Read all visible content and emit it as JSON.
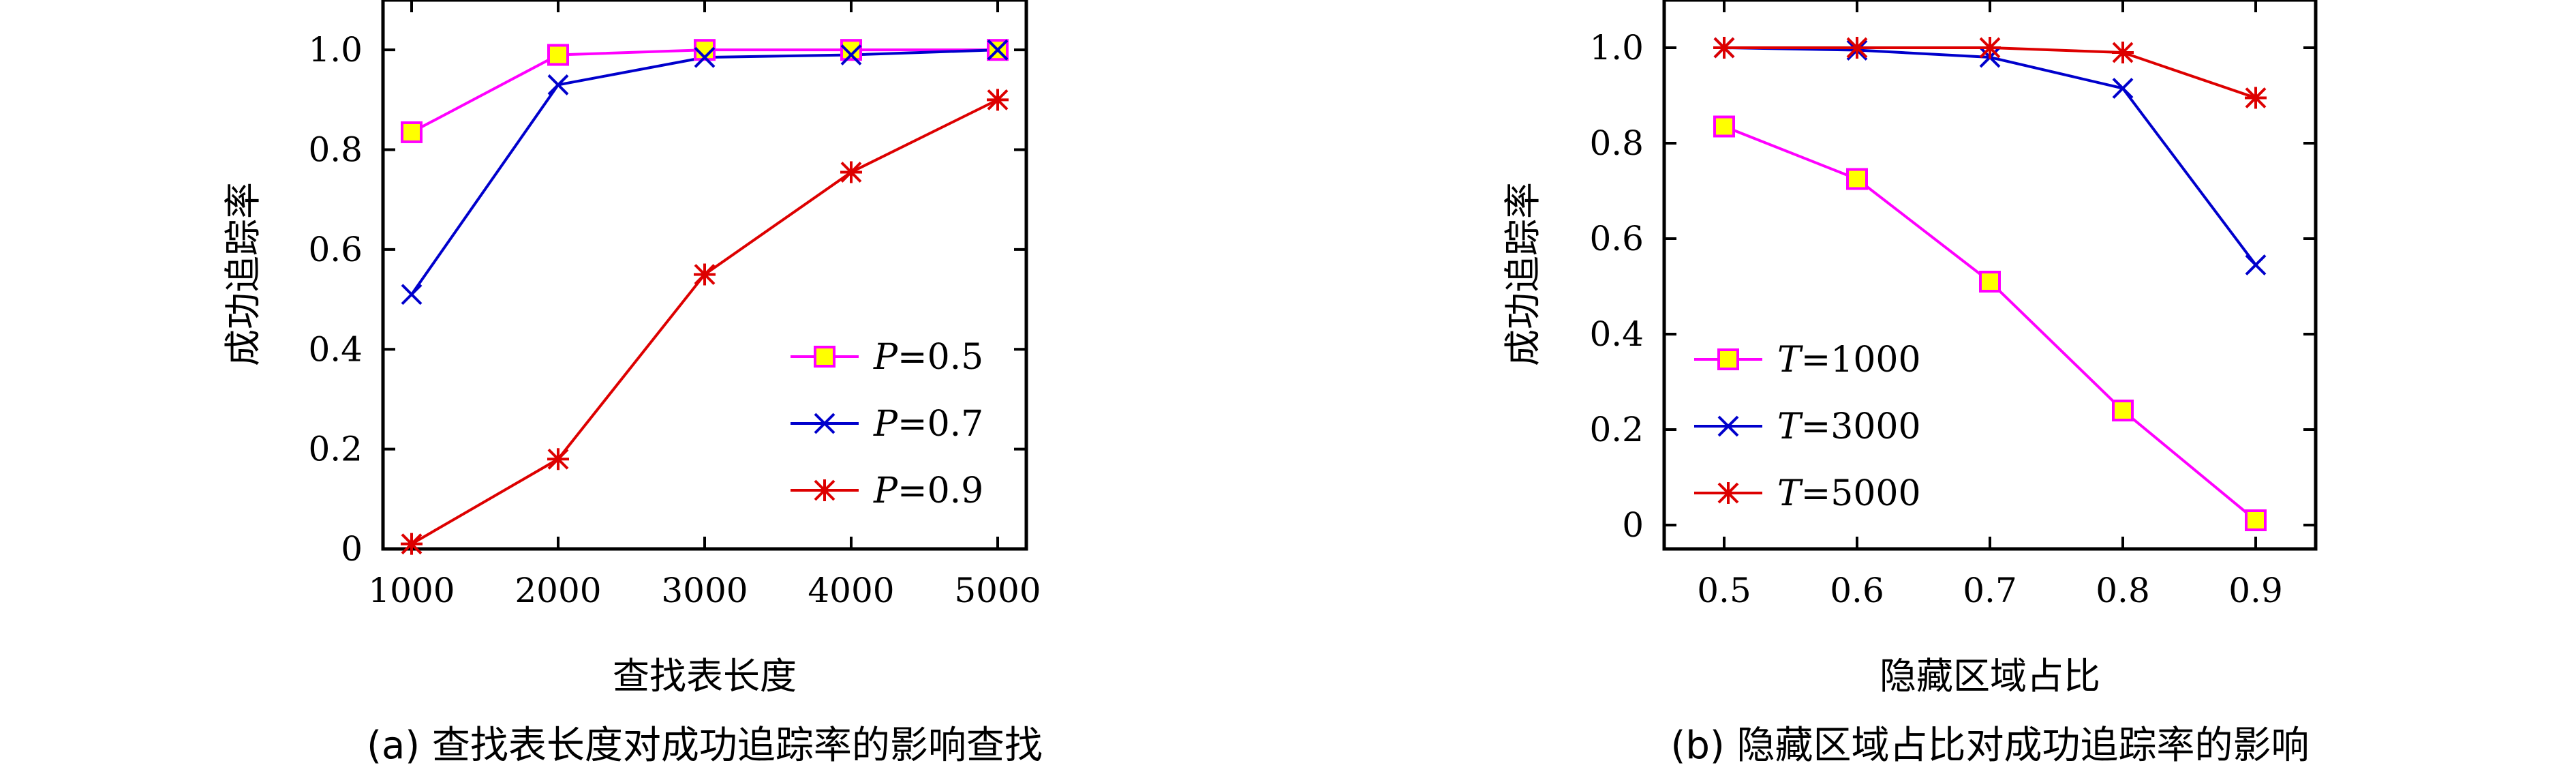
{
  "chart_data": [
    {
      "type": "line",
      "xlabel": "查找表长度",
      "ylabel": "成功追踪率",
      "caption": "(a) 查找表长度对成功追踪率的影响查找",
      "x": [
        1000,
        2000,
        3000,
        4000,
        5000
      ],
      "x_tick_labels": [
        "1000",
        "2000",
        "3000",
        "4000",
        "5000"
      ],
      "xlim": [
        1000,
        5000
      ],
      "ylim": [
        0,
        1.1
      ],
      "y_ticks": [
        0,
        0.2,
        0.4,
        0.6,
        0.8,
        1.0
      ],
      "y_tick_labels": [
        "0",
        "0.2",
        "0.4",
        "0.6",
        "0.8",
        "1.0"
      ],
      "legend_position": "bottom-right",
      "series": [
        {
          "label_var": "P",
          "label_value": "=0.5",
          "color": "#ff00ff",
          "marker": "square",
          "values": [
            0.835,
            0.99,
            1.0,
            1.0,
            1.0
          ]
        },
        {
          "label_var": "P",
          "label_value": "=0.7",
          "color": "#0000cc",
          "marker": "x",
          "values": [
            0.51,
            0.93,
            0.985,
            0.99,
            1.0
          ]
        },
        {
          "label_var": "P",
          "label_value": "=0.9",
          "color": "#dd0000",
          "marker": "star",
          "values": [
            0.01,
            0.18,
            0.55,
            0.755,
            0.9
          ]
        }
      ]
    },
    {
      "type": "line",
      "xlabel": "隐藏区域占比",
      "ylabel": "成功追踪率",
      "caption": "(b) 隐藏区域占比对成功追踪率的影响",
      "x": [
        0.5,
        0.6,
        0.7,
        0.8,
        0.9
      ],
      "x_tick_labels": [
        "0.5",
        "0.6",
        "0.7",
        "0.8",
        "0.9"
      ],
      "xlim": [
        0.5,
        0.9
      ],
      "ylim": [
        -0.05,
        1.1
      ],
      "y_ticks": [
        0,
        0.2,
        0.4,
        0.6,
        0.8,
        1.0
      ],
      "y_tick_labels": [
        "0",
        "0.2",
        "0.4",
        "0.6",
        "0.8",
        "1.0"
      ],
      "legend_position": "bottom-left",
      "series": [
        {
          "label_var": "T",
          "label_value": "=1000",
          "color": "#ff00ff",
          "marker": "square",
          "values": [
            0.835,
            0.725,
            0.51,
            0.24,
            0.01
          ]
        },
        {
          "label_var": "T",
          "label_value": "=3000",
          "color": "#0000cc",
          "marker": "x",
          "values": [
            1.0,
            0.995,
            0.98,
            0.915,
            0.545
          ]
        },
        {
          "label_var": "T",
          "label_value": "=5000",
          "color": "#dd0000",
          "marker": "star",
          "values": [
            1.0,
            1.0,
            1.0,
            0.99,
            0.895
          ]
        }
      ]
    }
  ],
  "marker_fill": "#ffff00"
}
